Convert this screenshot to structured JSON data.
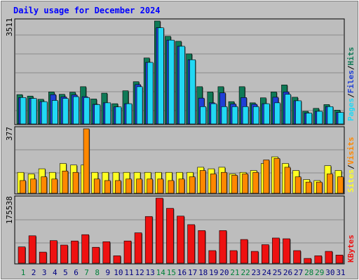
{
  "title": "Daily usage for December 2024",
  "colors": {
    "background": "#c0c0c0",
    "plot_bg": "#bdbdbd",
    "title": "#0000ff",
    "hits": "#0f7a57",
    "files": "#1f3fd6",
    "pages": "#22d8f4",
    "visits": "#ff8800",
    "sites": "#ffff22",
    "kbytes": "#ee1111",
    "day_normal": "#000080",
    "day_weekend": "#00803a"
  },
  "legend": {
    "pages": "Pages",
    "files": "Files",
    "hits": "Hits",
    "sites": "Sites",
    "visits": "Visits",
    "kbytes": "KBytes",
    "sep": "/"
  },
  "chart_data": [
    {
      "type": "bar",
      "panel": "top",
      "ymax_label": "3511",
      "ylim": [
        0,
        3511
      ],
      "grid": true,
      "categories": [
        "1",
        "2",
        "3",
        "4",
        "5",
        "6",
        "7",
        "8",
        "9",
        "10",
        "11",
        "12",
        "13",
        "14",
        "15",
        "16",
        "17",
        "18",
        "19",
        "20",
        "21",
        "22",
        "23",
        "24",
        "25",
        "26",
        "27",
        "28",
        "29",
        "30",
        "31"
      ],
      "weekend_days": [
        "1",
        "7",
        "8",
        "14",
        "15",
        "21",
        "22",
        "28",
        "29"
      ],
      "series": [
        {
          "name": "Hits",
          "values": [
            1000,
            950,
            840,
            1090,
            1010,
            1080,
            1270,
            850,
            1050,
            690,
            1130,
            1440,
            2250,
            3511,
            2990,
            2820,
            2390,
            1270,
            1090,
            1270,
            760,
            1270,
            720,
            890,
            1090,
            1330,
            910,
            430,
            530,
            660,
            470
          ]
        },
        {
          "name": "Files",
          "values": [
            900,
            870,
            760,
            1000,
            920,
            990,
            930,
            670,
            720,
            580,
            690,
            1340,
            2100,
            3280,
            2860,
            2650,
            2190,
            880,
            720,
            1060,
            680,
            900,
            670,
            690,
            910,
            1090,
            790,
            370,
            430,
            590,
            390
          ]
        },
        {
          "name": "Pages",
          "values": [
            900,
            870,
            760,
            800,
            870,
            930,
            900,
            660,
            720,
            580,
            690,
            1270,
            2100,
            3280,
            2860,
            2650,
            2190,
            590,
            690,
            590,
            590,
            590,
            590,
            690,
            720,
            1010,
            790,
            370,
            430,
            590,
            390
          ]
        }
      ]
    },
    {
      "type": "bar",
      "panel": "middle",
      "ymax_label": "377",
      "ylim": [
        0,
        377
      ],
      "grid": true,
      "categories": [
        "1",
        "2",
        "3",
        "4",
        "5",
        "6",
        "7",
        "8",
        "9",
        "10",
        "11",
        "12",
        "13",
        "14",
        "15",
        "16",
        "17",
        "18",
        "19",
        "20",
        "21",
        "22",
        "23",
        "24",
        "25",
        "26",
        "27",
        "28",
        "29",
        "30",
        "31"
      ],
      "series": [
        {
          "name": "Sites",
          "values": [
            122,
            113,
            143,
            122,
            174,
            165,
            165,
            122,
            122,
            122,
            122,
            122,
            122,
            122,
            122,
            122,
            122,
            152,
            143,
            152,
            113,
            122,
            133,
            174,
            213,
            174,
            133,
            80,
            74,
            161,
            133
          ]
        },
        {
          "name": "Visits",
          "values": [
            74,
            83,
            96,
            83,
            130,
            122,
            377,
            83,
            74,
            74,
            83,
            83,
            83,
            83,
            74,
            83,
            96,
            133,
            113,
            122,
            105,
            113,
            122,
            195,
            204,
            152,
            96,
            65,
            65,
            113,
            96
          ]
        }
      ]
    },
    {
      "type": "bar",
      "panel": "bottom",
      "ymax_label": "175538",
      "ylim": [
        0,
        175538
      ],
      "grid": true,
      "categories": [
        "1",
        "2",
        "3",
        "4",
        "5",
        "6",
        "7",
        "8",
        "9",
        "10",
        "11",
        "12",
        "13",
        "14",
        "15",
        "16",
        "17",
        "18",
        "19",
        "20",
        "21",
        "22",
        "23",
        "24",
        "25",
        "26",
        "27",
        "28",
        "29",
        "30",
        "31"
      ],
      "series": [
        {
          "name": "KBytes",
          "values": [
            44000,
            74000,
            30000,
            61000,
            49000,
            60000,
            77000,
            43000,
            58000,
            20000,
            60000,
            82000,
            126000,
            175538,
            148000,
            127000,
            104000,
            88000,
            34000,
            88000,
            34000,
            64000,
            32000,
            50000,
            68000,
            66000,
            34000,
            13000,
            20000,
            32000,
            22000
          ]
        }
      ]
    }
  ]
}
